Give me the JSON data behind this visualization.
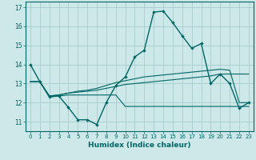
{
  "title": "",
  "xlabel": "Humidex (Indice chaleur)",
  "background_color": "#cce8e8",
  "grid_color": "#aacccc",
  "line_color": "#006666",
  "x_values": [
    0,
    1,
    2,
    3,
    4,
    5,
    6,
    7,
    8,
    9,
    10,
    11,
    12,
    13,
    14,
    15,
    16,
    17,
    18,
    19,
    20,
    21,
    22,
    23
  ],
  "series1": [
    14.0,
    13.1,
    12.3,
    12.35,
    11.75,
    11.1,
    11.1,
    10.85,
    12.0,
    12.9,
    13.35,
    14.4,
    14.75,
    16.75,
    16.8,
    16.2,
    15.5,
    14.85,
    15.1,
    13.0,
    13.5,
    13.0,
    11.7,
    12.0
  ],
  "series2": [
    13.1,
    13.1,
    12.3,
    12.35,
    12.4,
    12.4,
    12.4,
    12.4,
    12.4,
    12.4,
    11.8,
    11.8,
    11.8,
    11.8,
    11.8,
    11.8,
    11.8,
    11.8,
    11.8,
    11.8,
    11.8,
    11.8,
    11.8,
    11.8
  ],
  "series3": [
    13.1,
    13.1,
    12.35,
    12.4,
    12.5,
    12.55,
    12.6,
    12.65,
    12.75,
    12.85,
    12.95,
    13.0,
    13.05,
    13.1,
    13.15,
    13.2,
    13.25,
    13.3,
    13.35,
    13.4,
    13.5,
    13.5,
    13.5,
    13.5
  ],
  "series4": [
    13.1,
    13.1,
    12.35,
    12.4,
    12.5,
    12.6,
    12.65,
    12.75,
    12.9,
    13.05,
    13.15,
    13.25,
    13.35,
    13.4,
    13.45,
    13.5,
    13.55,
    13.6,
    13.65,
    13.7,
    13.75,
    13.7,
    12.0,
    12.0
  ],
  "ylim": [
    10.5,
    17.3
  ],
  "yticks": [
    11,
    12,
    13,
    14,
    15,
    16,
    17
  ],
  "xticks": [
    0,
    1,
    2,
    3,
    4,
    5,
    6,
    7,
    8,
    9,
    10,
    11,
    12,
    13,
    14,
    15,
    16,
    17,
    18,
    19,
    20,
    21,
    22,
    23
  ]
}
